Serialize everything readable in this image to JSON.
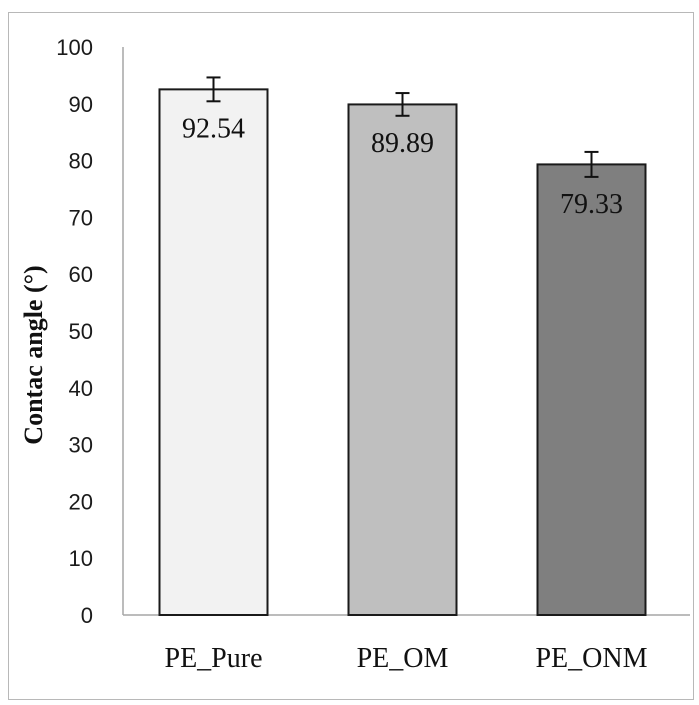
{
  "chart_data": {
    "type": "bar",
    "categories": [
      "PE_Pure",
      "PE_OM",
      "PE_ONM"
    ],
    "values": [
      92.54,
      89.89,
      79.33
    ],
    "errors": [
      2.1,
      2.0,
      2.2
    ],
    "data_labels": [
      "92.54",
      "89.89",
      "79.33"
    ],
    "xlabel": "",
    "ylabel": "Contac angle (°)",
    "ylim": [
      0,
      100
    ],
    "yticks": [
      0,
      10,
      20,
      30,
      40,
      50,
      60,
      70,
      80,
      90,
      100
    ],
    "grid": false,
    "legend": "none",
    "colors": [
      "#f2f2f2",
      "#bfbfbf",
      "#7f7f7f"
    ],
    "bar_edge_color": "#1a1a1a",
    "axis_color": "#a6a6a6"
  }
}
